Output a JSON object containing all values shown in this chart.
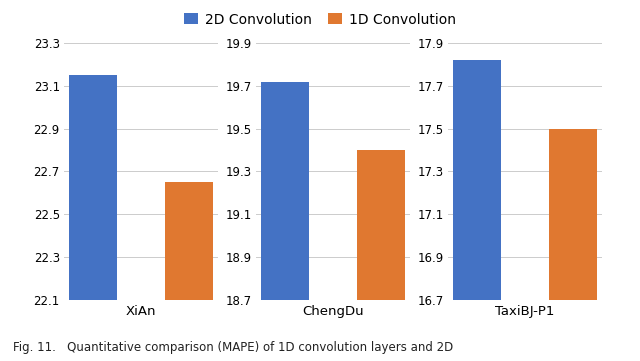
{
  "subplots": [
    {
      "label": "XiAn",
      "bar_2d": 23.15,
      "bar_1d": 22.65,
      "ylim": [
        22.1,
        23.3
      ],
      "yticks": [
        22.1,
        22.3,
        22.5,
        22.7,
        22.9,
        23.1,
        23.3
      ]
    },
    {
      "label": "ChengDu",
      "bar_2d": 19.72,
      "bar_1d": 19.4,
      "ylim": [
        18.7,
        19.9
      ],
      "yticks": [
        18.7,
        18.9,
        19.1,
        19.3,
        19.5,
        19.7,
        19.9
      ]
    },
    {
      "label": "TaxiBJ-P1",
      "bar_2d": 17.82,
      "bar_1d": 17.5,
      "ylim": [
        16.7,
        17.9
      ],
      "yticks": [
        16.7,
        16.9,
        17.1,
        17.3,
        17.5,
        17.7,
        17.9
      ]
    }
  ],
  "color_2d": "#4472C4",
  "color_1d": "#E07830",
  "legend_labels": [
    "2D Convolution",
    "1D Convolution"
  ],
  "caption": "Fig. 11.   Quantitative comparison (MAPE) of 1D convolution layers and 2D",
  "bar_width": 0.5,
  "background_color": "#FFFFFF",
  "figsize": [
    6.4,
    3.61
  ],
  "dpi": 100
}
